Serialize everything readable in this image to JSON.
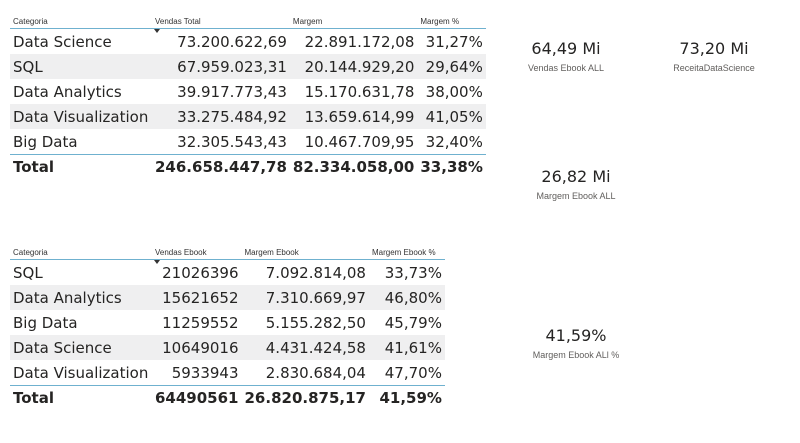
{
  "table1": {
    "headers": [
      "Categoria",
      "Vendas Total",
      "Margem",
      "Margem %"
    ],
    "rows": [
      [
        "Data Science",
        "73.200.622,69",
        "22.891.172,08",
        "31,27%"
      ],
      [
        "SQL",
        "67.959.023,31",
        "20.144.929,20",
        "29,64%"
      ],
      [
        "Data Analytics",
        "39.917.773,43",
        "15.170.631,78",
        "38,00%"
      ],
      [
        "Data Visualization",
        "33.275.484,92",
        "13.659.614,99",
        "41,05%"
      ],
      [
        "Big Data",
        "32.305.543,43",
        "10.467.709,95",
        "32,40%"
      ]
    ],
    "total": [
      "Total",
      "246.658.447,78",
      "82.334.058,00",
      "33,38%"
    ]
  },
  "table2": {
    "headers": [
      "Categoria",
      "Vendas Ebook",
      "Margem Ebook",
      "Margem Ebook %"
    ],
    "rows": [
      [
        "SQL",
        "21026396",
        "7.092.814,08",
        "33,73%"
      ],
      [
        "Data Analytics",
        "15621652",
        "7.310.669,97",
        "46,80%"
      ],
      [
        "Big Data",
        "11259552",
        "5.155.282,50",
        "45,79%"
      ],
      [
        "Data Science",
        "10649016",
        "4.431.424,58",
        "41,61%"
      ],
      [
        "Data Visualization",
        "5933943",
        "2.830.684,04",
        "47,70%"
      ]
    ],
    "total": [
      "Total",
      "64490561",
      "26.820.875,17",
      "41,59%"
    ]
  },
  "cards": {
    "vendas_ebook_all": {
      "value": "64,49 Mi",
      "label": "Vendas Ebook ALL"
    },
    "receita_datascience": {
      "value": "73,20 Mi",
      "label": "ReceitaDataScience"
    },
    "margem_ebook_all": {
      "value": "26,82 Mi",
      "label": "Margem Ebook ALL"
    },
    "margem_ebook_all_pct": {
      "value": "41,59%",
      "label": "Margem Ebook ALl %"
    }
  }
}
